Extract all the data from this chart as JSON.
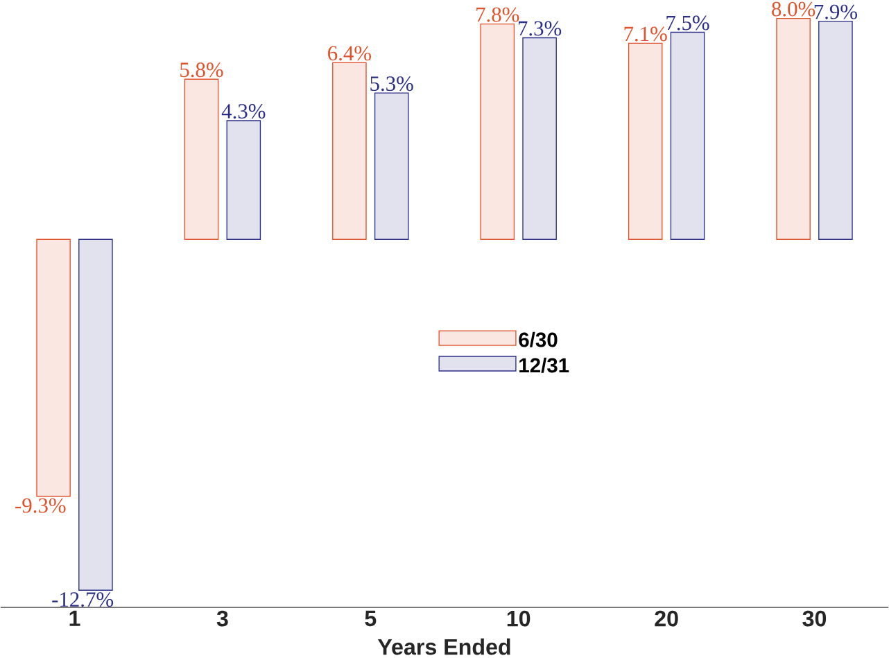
{
  "chart_data": {
    "type": "bar",
    "xlabel": "Years Ended",
    "categories": [
      "1",
      "3",
      "5",
      "10",
      "20",
      "30"
    ],
    "series": [
      {
        "name": "6/30",
        "color": "#e0522a",
        "values": [
          -9.3,
          5.8,
          6.4,
          7.8,
          7.1,
          8.0
        ],
        "value_labels": [
          "-9.3%",
          "5.8%",
          "6.4%",
          "7.8%",
          "7.1%",
          "8.0%"
        ]
      },
      {
        "name": "12/31",
        "color": "#2b2f86",
        "values": [
          -12.7,
          4.3,
          5.3,
          7.3,
          7.5,
          7.9
        ],
        "value_labels": [
          "-12.7%",
          "4.3%",
          "5.3%",
          "7.3%",
          "7.5%",
          "7.9%"
        ]
      }
    ],
    "legend": "center"
  }
}
